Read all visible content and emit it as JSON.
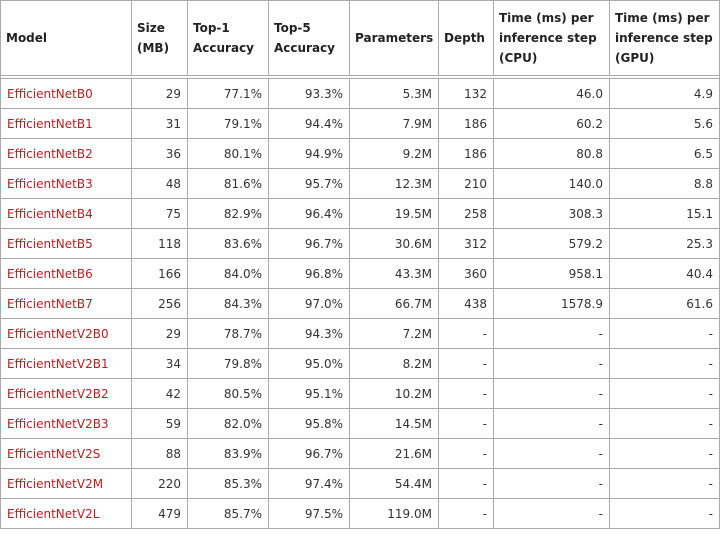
{
  "headers": {
    "model": "Model",
    "size": [
      "Size",
      "(MB)"
    ],
    "top1": [
      "Top-1",
      "Accuracy"
    ],
    "top5": [
      "Top-5",
      "Accuracy"
    ],
    "params": "Parameters",
    "depth": "Depth",
    "cpu": [
      "Time (ms) per",
      "inference step",
      "(CPU)"
    ],
    "gpu": [
      "Time (ms) per",
      "inference step",
      "(GPU)"
    ]
  },
  "link_color": "#b52020",
  "rows": [
    {
      "model": "EfficientNetB0",
      "size": "29",
      "top1": "77.1%",
      "top5": "93.3%",
      "params": "5.3M",
      "depth": "132",
      "cpu": "46.0",
      "gpu": "4.9"
    },
    {
      "model": "EfficientNetB1",
      "size": "31",
      "top1": "79.1%",
      "top5": "94.4%",
      "params": "7.9M",
      "depth": "186",
      "cpu": "60.2",
      "gpu": "5.6"
    },
    {
      "model": "EfficientNetB2",
      "size": "36",
      "top1": "80.1%",
      "top5": "94.9%",
      "params": "9.2M",
      "depth": "186",
      "cpu": "80.8",
      "gpu": "6.5"
    },
    {
      "model": "EfficientNetB3",
      "size": "48",
      "top1": "81.6%",
      "top5": "95.7%",
      "params": "12.3M",
      "depth": "210",
      "cpu": "140.0",
      "gpu": "8.8"
    },
    {
      "model": "EfficientNetB4",
      "size": "75",
      "top1": "82.9%",
      "top5": "96.4%",
      "params": "19.5M",
      "depth": "258",
      "cpu": "308.3",
      "gpu": "15.1"
    },
    {
      "model": "EfficientNetB5",
      "size": "118",
      "top1": "83.6%",
      "top5": "96.7%",
      "params": "30.6M",
      "depth": "312",
      "cpu": "579.2",
      "gpu": "25.3"
    },
    {
      "model": "EfficientNetB6",
      "size": "166",
      "top1": "84.0%",
      "top5": "96.8%",
      "params": "43.3M",
      "depth": "360",
      "cpu": "958.1",
      "gpu": "40.4"
    },
    {
      "model": "EfficientNetB7",
      "size": "256",
      "top1": "84.3%",
      "top5": "97.0%",
      "params": "66.7M",
      "depth": "438",
      "cpu": "1578.9",
      "gpu": "61.6"
    },
    {
      "model": "EfficientNetV2B0",
      "size": "29",
      "top1": "78.7%",
      "top5": "94.3%",
      "params": "7.2M",
      "depth": "-",
      "cpu": "-",
      "gpu": "-"
    },
    {
      "model": "EfficientNetV2B1",
      "size": "34",
      "top1": "79.8%",
      "top5": "95.0%",
      "params": "8.2M",
      "depth": "-",
      "cpu": "-",
      "gpu": "-"
    },
    {
      "model": "EfficientNetV2B2",
      "size": "42",
      "top1": "80.5%",
      "top5": "95.1%",
      "params": "10.2M",
      "depth": "-",
      "cpu": "-",
      "gpu": "-"
    },
    {
      "model": "EfficientNetV2B3",
      "size": "59",
      "top1": "82.0%",
      "top5": "95.8%",
      "params": "14.5M",
      "depth": "-",
      "cpu": "-",
      "gpu": "-"
    },
    {
      "model": "EfficientNetV2S",
      "size": "88",
      "top1": "83.9%",
      "top5": "96.7%",
      "params": "21.6M",
      "depth": "-",
      "cpu": "-",
      "gpu": "-"
    },
    {
      "model": "EfficientNetV2M",
      "size": "220",
      "top1": "85.3%",
      "top5": "97.4%",
      "params": "54.4M",
      "depth": "-",
      "cpu": "-",
      "gpu": "-"
    },
    {
      "model": "EfficientNetV2L",
      "size": "479",
      "top1": "85.7%",
      "top5": "97.5%",
      "params": "119.0M",
      "depth": "-",
      "cpu": "-",
      "gpu": "-"
    }
  ]
}
